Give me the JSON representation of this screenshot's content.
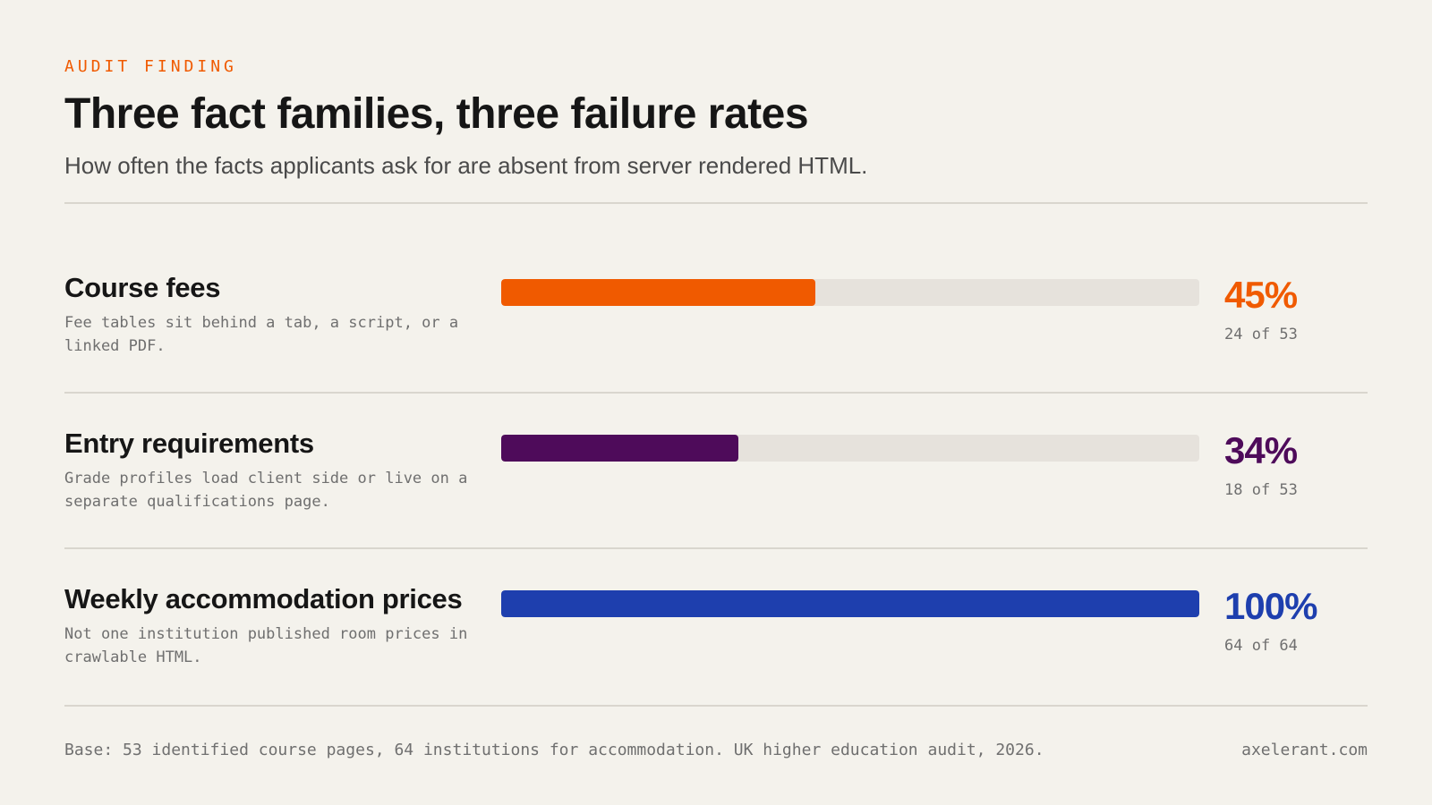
{
  "header": {
    "kicker": "AUDIT FINDING",
    "title": "Three fact families, three failure rates",
    "subtitle": "How often the facts applicants ask for are absent from server rendered HTML."
  },
  "chart_data": {
    "type": "bar",
    "orientation": "horizontal",
    "xlim": [
      0,
      100
    ],
    "grid": false,
    "categories": [
      "Course fees",
      "Entry requirements",
      "Weekly accommodation prices"
    ],
    "values": [
      45,
      34,
      100
    ],
    "series": [
      {
        "label": "Course fees",
        "description": "Fee tables sit behind a tab, a script, or a linked PDF.",
        "value": 45,
        "value_label": "45%",
        "count_label": "24 of 53",
        "color": "#f05a00"
      },
      {
        "label": "Entry requirements",
        "description": "Grade profiles load client side or live on a separate qualifications page.",
        "value": 34,
        "value_label": "34%",
        "count_label": "18 of 53",
        "color": "#4e0b5a"
      },
      {
        "label": "Weekly accommodation prices",
        "description": "Not one institution published room prices in crawlable HTML.",
        "value": 100,
        "value_label": "100%",
        "count_label": "64 of 64",
        "color": "#1e3fae"
      }
    ],
    "track_color": "#e6e2dc"
  },
  "footer": {
    "note": "Base: 53 identified course pages, 64 institutions for accommodation. UK higher education audit, 2026.",
    "site": "axelerant.com"
  }
}
